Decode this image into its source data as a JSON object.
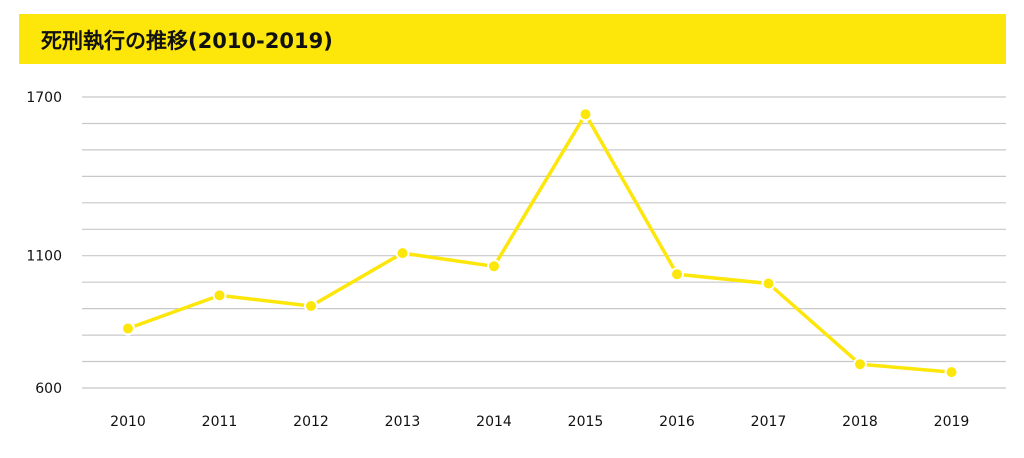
{
  "title": "死刑執行の推移(2010-2019)",
  "colors": {
    "accent": "#fde60a",
    "line": "#fde60a",
    "grid": "#c8c8c8",
    "text": "#111111"
  },
  "chart_data": {
    "type": "line",
    "title": "死刑執行の推移(2010-2019)",
    "xlabel": "",
    "ylabel": "",
    "categories": [
      "2010",
      "2011",
      "2012",
      "2013",
      "2014",
      "2015",
      "2016",
      "2017",
      "2018",
      "2019"
    ],
    "series": [
      {
        "values": [
          825,
          950,
          910,
          1110,
          1060,
          1635,
          1030,
          995,
          690,
          660
        ]
      }
    ],
    "ylim": [
      600,
      1700
    ],
    "yticks": [
      "1700",
      "1100",
      "600"
    ],
    "grid": true,
    "legend": "none"
  }
}
